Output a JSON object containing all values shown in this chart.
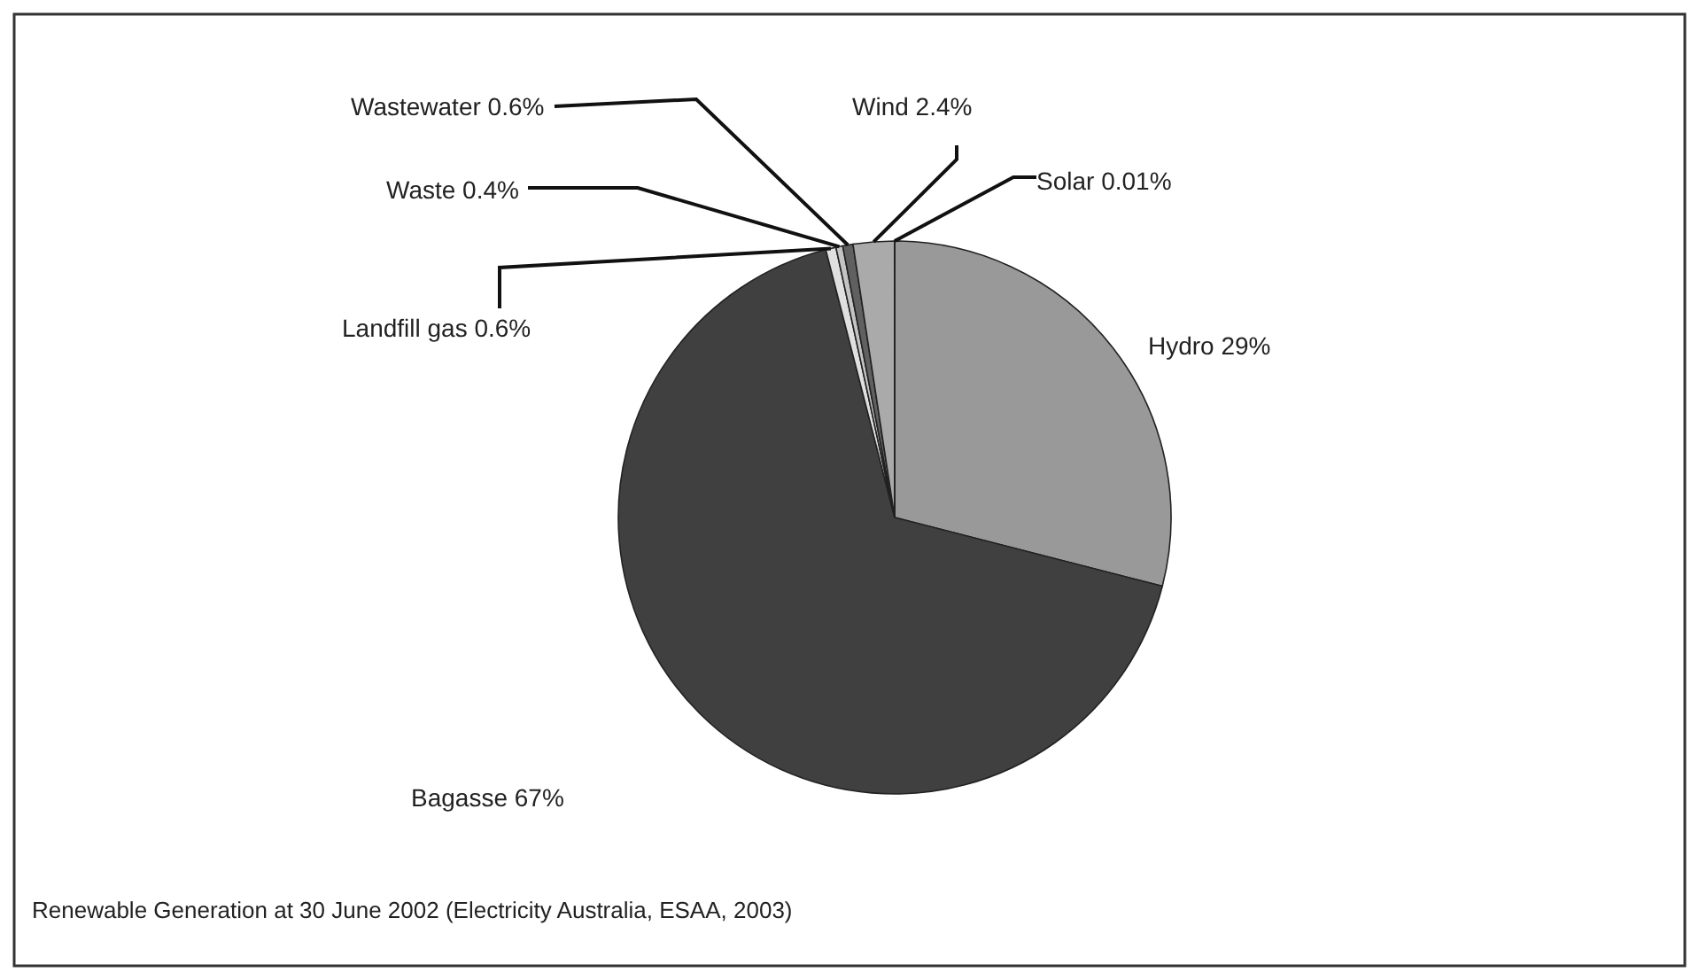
{
  "chart_data": {
    "type": "pie",
    "title": "Renewable Generation at 30 June 2002 (Electricity Australia, ESAA, 2003)",
    "categories": [
      "Hydro",
      "Bagasse",
      "Landfill gas",
      "Waste",
      "Wastewater",
      "Wind",
      "Solar"
    ],
    "values": [
      29,
      67,
      0.6,
      0.4,
      0.6,
      2.4,
      0.01
    ],
    "value_labels": [
      "29%",
      "67%",
      "0.6%",
      "0.4%",
      "0.6%",
      "2.4%",
      "0.01%"
    ],
    "colors": [
      "#999999",
      "#404040",
      "#e0e0e0",
      "#c4c4c4",
      "#606060",
      "#aaaaaa",
      "#ffffff"
    ]
  }
}
